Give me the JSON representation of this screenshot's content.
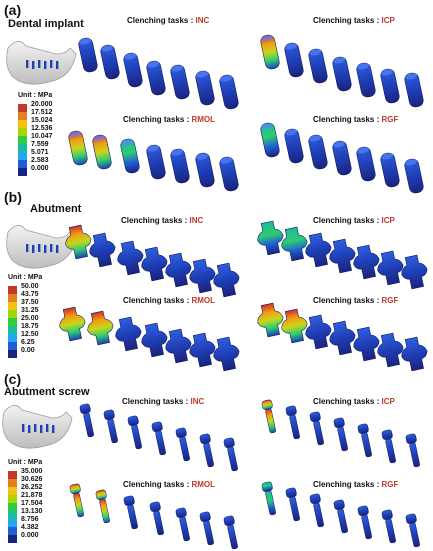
{
  "panels": [
    {
      "letter": "(a)",
      "title": "Dental implant",
      "tasks": [
        {
          "prefix": "Clenching tasks : ",
          "code": "INC"
        },
        {
          "prefix": "Clenching tasks : ",
          "code": "ICP"
        },
        {
          "prefix": "Clenching tasks : ",
          "code": "RMOL"
        },
        {
          "prefix": "Clenching tasks : ",
          "code": "RGF"
        }
      ],
      "legend": {
        "title": "Unit : MPa",
        "values": [
          "20.000",
          "17.512",
          "15.024",
          "12.536",
          "10.047",
          "7.559",
          "5.071",
          "2.583",
          "0.000"
        ]
      }
    },
    {
      "letter": "(b)",
      "title": "Abutment",
      "tasks": [
        {
          "prefix": "Clenching tasks : ",
          "code": "INC"
        },
        {
          "prefix": "Clenching tasks : ",
          "code": "ICP"
        },
        {
          "prefix": "Clenching tasks : ",
          "code": "RMOL"
        },
        {
          "prefix": "Clenching tasks : ",
          "code": "RGF"
        }
      ],
      "legend": {
        "title": "Unit : MPa",
        "values": [
          "50.00",
          "43.75",
          "37.50",
          "31.25",
          "25.00",
          "18.75",
          "12.50",
          "6.25",
          "0.00"
        ]
      }
    },
    {
      "letter": "(c)",
      "title": "Abutment screw",
      "tasks": [
        {
          "prefix": "Clenching tasks : ",
          "code": "INC"
        },
        {
          "prefix": "Clenching tasks : ",
          "code": "ICP"
        },
        {
          "prefix": "Clenching tasks : ",
          "code": "RMOL"
        },
        {
          "prefix": "Clenching tasks : ",
          "code": "RGF"
        }
      ],
      "legend": {
        "title": "Unit : MPa",
        "values": [
          "35.000",
          "30.626",
          "26.252",
          "21.878",
          "17.504",
          "13.130",
          "8.756",
          "4.382",
          "0.000"
        ]
      }
    }
  ],
  "legend_colors": [
    "#c0392b",
    "#e67e22",
    "#f1c40f",
    "#a6d608",
    "#2ecc40",
    "#1abc9c",
    "#22a7f0",
    "#1f5fd6",
    "#1a237e"
  ]
}
